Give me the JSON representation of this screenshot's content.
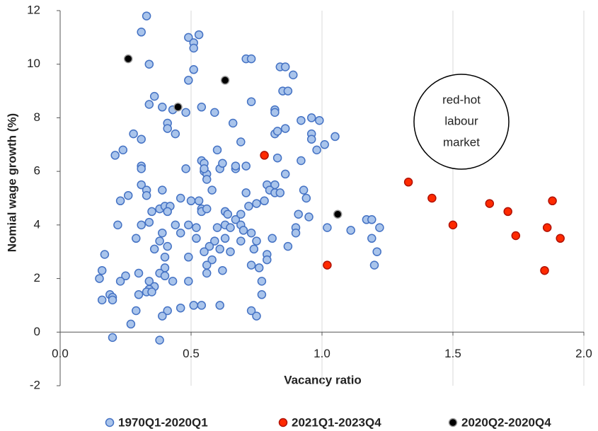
{
  "chart_data": {
    "type": "scatter",
    "xlabel": "Vacancy ratio",
    "ylabel": "Nomial wage growth (%)",
    "xlim": [
      0,
      2
    ],
    "ylim": [
      -2,
      12
    ],
    "xticks": [
      {
        "value": 0,
        "label": "0.0"
      },
      {
        "value": 0.5,
        "label": "0.5"
      },
      {
        "value": 1,
        "label": "1.0"
      },
      {
        "value": 1.5,
        "label": "1.5"
      },
      {
        "value": 2,
        "label": "2.0"
      }
    ],
    "yticks": [
      -2,
      0,
      2,
      4,
      6,
      8,
      10,
      12
    ],
    "grid": "x",
    "legend": "bottom",
    "annotation": [
      "red-hot",
      "labour",
      "market"
    ],
    "series": [
      {
        "name": "1970Q1-2020Q1",
        "color": "#a9c4eb",
        "edgecolor": "#4472c4",
        "x": [
          0.33,
          0.31,
          0.49,
          0.53,
          0.51,
          0.51,
          0.34,
          0.51,
          0.49,
          0.71,
          0.73,
          0.84,
          0.86,
          0.89,
          0.85,
          0.87,
          0.36,
          0.34,
          0.39,
          0.54,
          0.59,
          0.48,
          0.43,
          0.73,
          0.82,
          0.82,
          0.96,
          0.99,
          0.92,
          0.31,
          0.28,
          0.41,
          0.41,
          0.44,
          0.66,
          0.86,
          0.82,
          0.83,
          0.96,
          0.96,
          1.05,
          1.01,
          0.98,
          0.24,
          0.21,
          0.6,
          0.69,
          0.83,
          0.92,
          0.71,
          0.31,
          0.31,
          0.48,
          0.54,
          0.55,
          0.55,
          0.56,
          0.56,
          0.61,
          0.67,
          0.55,
          0.62,
          0.67,
          0.86,
          0.31,
          0.33,
          0.33,
          0.26,
          0.39,
          0.58,
          0.71,
          0.79,
          0.82,
          0.8,
          0.82,
          0.84,
          0.93,
          0.94,
          0.23,
          0.46,
          0.5,
          0.53,
          0.78,
          0.75,
          0.72,
          0.35,
          0.38,
          0.4,
          0.42,
          0.41,
          0.54,
          0.54,
          0.56,
          0.63,
          0.64,
          0.67,
          0.69,
          0.91,
          0.95,
          0.34,
          0.22,
          0.31,
          0.44,
          0.49,
          0.52,
          0.6,
          0.63,
          0.65,
          0.69,
          0.7,
          0.73,
          0.9,
          0.9,
          0.39,
          0.46,
          1.02,
          1.11,
          1.17,
          1.19,
          1.22,
          0.29,
          0.38,
          0.52,
          0.59,
          0.63,
          0.69,
          0.75,
          0.81,
          1.19,
          0.36,
          0.41,
          0.57,
          0.61,
          0.74,
          0.87,
          0.17,
          0.4,
          0.49,
          0.55,
          0.79,
          1.21,
          0.58,
          0.65,
          0.79,
          0.56,
          0.73,
          1.2,
          0.16,
          0.4,
          0.38,
          0.56,
          0.62,
          0.76,
          0.25,
          0.3,
          0.4,
          0.15,
          0.23,
          0.34,
          0.43,
          0.49,
          0.77,
          0.36,
          0.34,
          0.33,
          0.35,
          0.3,
          0.19,
          0.2,
          0.2,
          0.16,
          0.77,
          0.51,
          0.54,
          0.61,
          0.73,
          0.75,
          0.29,
          0.41,
          0.39,
          0.46,
          0.27,
          0.2,
          0.38
        ],
        "y": [
          11.8,
          11.2,
          11,
          11.1,
          10.8,
          10.6,
          10,
          9.8,
          9.4,
          10.2,
          10.2,
          9.9,
          9.9,
          9.6,
          9,
          9,
          8.8,
          8.5,
          8.4,
          8.4,
          8.2,
          8.2,
          8.3,
          8.6,
          8.3,
          8.2,
          8,
          7.9,
          7.9,
          7.2,
          7.4,
          7.8,
          7.6,
          7.4,
          7.8,
          7.6,
          7.4,
          7.5,
          7.4,
          7.2,
          7.3,
          7,
          6.8,
          6.8,
          6.6,
          6.8,
          7.1,
          6.5,
          6.4,
          6.2,
          6.2,
          6.1,
          6.1,
          6.4,
          6.3,
          6,
          5.9,
          5.7,
          6.1,
          6.1,
          6.1,
          6.3,
          6.2,
          5.9,
          5.5,
          5.3,
          5.1,
          5.1,
          5.3,
          5.3,
          5.2,
          5.5,
          5.5,
          5.3,
          5.2,
          5.2,
          5.3,
          5,
          4.9,
          5,
          4.9,
          4.9,
          4.9,
          4.8,
          4.7,
          4.5,
          4.6,
          4.7,
          4.7,
          4.5,
          4.6,
          4.5,
          4.6,
          4.5,
          4.4,
          4.2,
          4.4,
          4.4,
          4.3,
          4.1,
          4,
          4,
          4,
          4,
          3.9,
          3.9,
          4,
          3.9,
          4,
          3.8,
          3.7,
          3.9,
          3.7,
          3.7,
          3.7,
          3.9,
          3.8,
          4.2,
          4.2,
          3.9,
          3.5,
          3.4,
          3.5,
          3.4,
          3.5,
          3.4,
          3.4,
          3.5,
          3.5,
          3.1,
          3.2,
          3.2,
          3.1,
          3.1,
          3.2,
          2.9,
          2.8,
          2.8,
          3,
          2.9,
          3,
          2.7,
          3,
          2.7,
          2.5,
          2.5,
          2.5,
          2.3,
          2.4,
          2.2,
          2.2,
          2.3,
          2.4,
          2.1,
          2.2,
          2.1,
          2,
          1.9,
          1.9,
          1.9,
          1.9,
          1.9,
          1.7,
          1.6,
          1.5,
          1.5,
          1.4,
          1.4,
          1.3,
          1.2,
          1.2,
          1.4,
          1,
          1,
          1,
          0.8,
          0.6,
          0.8,
          0.8,
          0.6,
          0.9,
          0.3,
          -0.2,
          -0.3
        ]
      },
      {
        "name": "2021Q1-2023Q4",
        "color": "#ff2a00",
        "edgecolor": "#b01000",
        "x": [
          0.78,
          1.33,
          1.42,
          1.5,
          1.02,
          1.64,
          1.71,
          1.74,
          1.88,
          1.86,
          1.91,
          1.85
        ],
        "y": [
          6.6,
          5.6,
          5,
          4,
          2.5,
          4.8,
          4.5,
          3.6,
          4.9,
          3.9,
          3.5,
          2.3
        ]
      },
      {
        "name": "2020Q2-2020Q4",
        "color": "#000000",
        "edgecolor": "#9a9a9a",
        "x": [
          0.26,
          0.45,
          0.63,
          1.06
        ],
        "y": [
          10.2,
          8.4,
          9.4,
          4.4
        ]
      }
    ]
  }
}
